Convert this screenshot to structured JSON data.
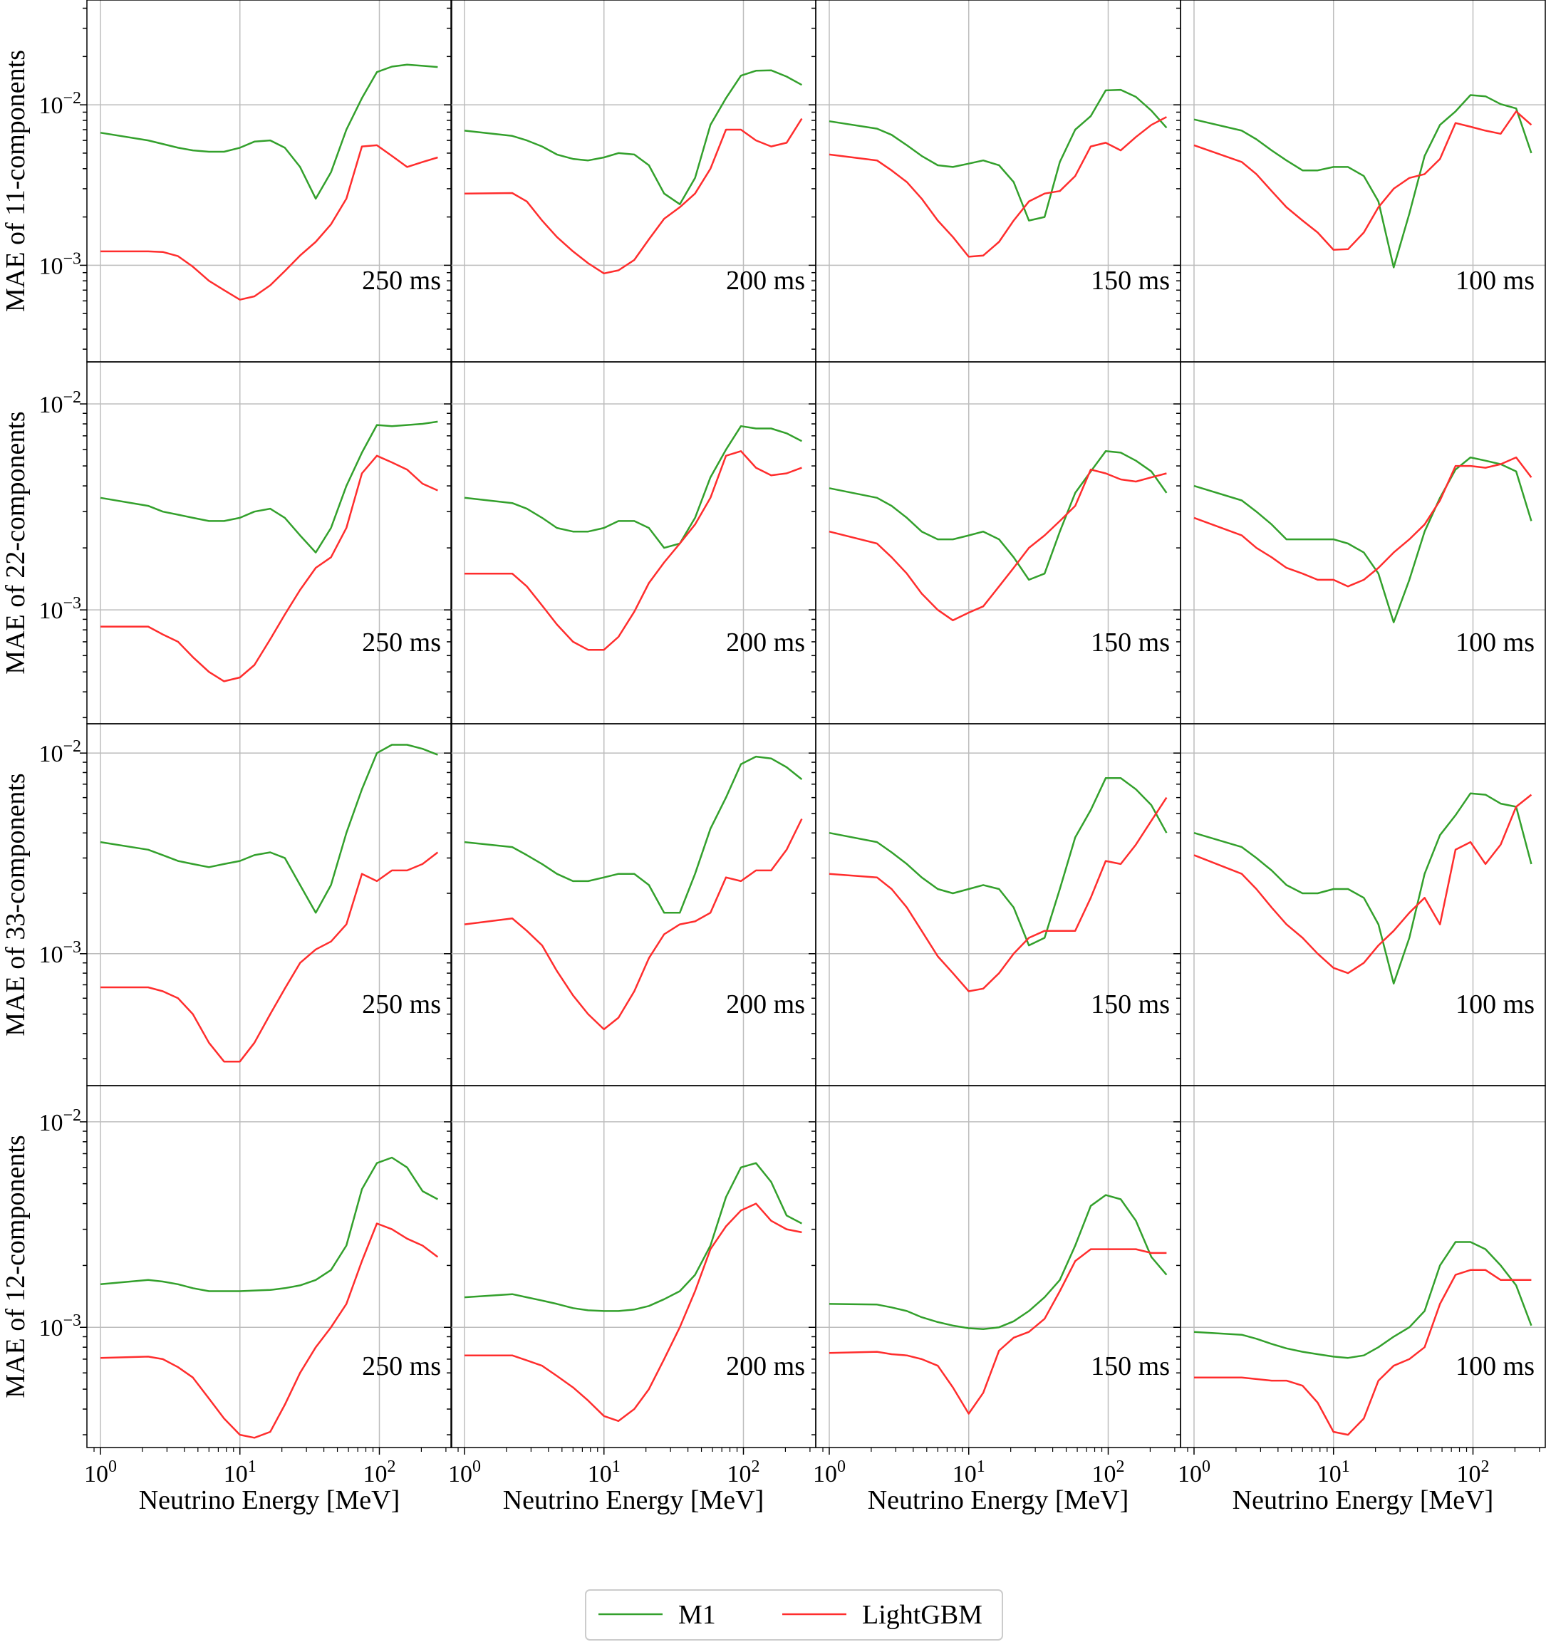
{
  "chart_data": {
    "type": "line",
    "layout": "4x4 grid",
    "x_scale": "log",
    "y_scale": "log",
    "xlim": [
      0.8,
      330
    ],
    "xlabel": "Neutrino Energy [MeV]",
    "x_ticks": [
      {
        "value": 1,
        "base": "10",
        "exp": "0"
      },
      {
        "value": 10,
        "base": "10",
        "exp": "1"
      },
      {
        "value": 100,
        "base": "10",
        "exp": "2"
      }
    ],
    "energies": [
      1,
      2.2,
      2.8,
      3.6,
      4.6,
      6,
      7.7,
      10,
      12.7,
      16.5,
      21,
      27,
      35,
      45,
      58,
      75,
      96,
      123,
      158,
      204,
      262
    ],
    "legend": {
      "position": "bottom-center",
      "entries": [
        {
          "name": "M1",
          "color": "#33a02c"
        },
        {
          "name": "LightGBM",
          "color": "#ff2d2d"
        }
      ]
    },
    "rows": [
      {
        "ylabel": "MAE of 11-components",
        "ylim": [
          0.00025,
          0.045
        ],
        "y_ticks": [
          {
            "value": 0.001,
            "base": "10",
            "exp": "−3"
          },
          {
            "value": 0.01,
            "base": "10",
            "exp": "−2"
          }
        ],
        "panels": [
          {
            "label": "250 ms",
            "M1": [
              0.0067,
              0.006,
              0.0057,
              0.0054,
              0.0052,
              0.0051,
              0.0051,
              0.0054,
              0.0059,
              0.006,
              0.0054,
              0.0041,
              0.0026,
              0.0038,
              0.007,
              0.011,
              0.016,
              0.0173,
              0.0178,
              0.0175,
              0.0172
            ],
            "LightGBM": [
              0.00122,
              0.00122,
              0.00121,
              0.00114,
              0.00098,
              0.0008,
              0.0007,
              0.00061,
              0.00064,
              0.00075,
              0.00092,
              0.00115,
              0.0014,
              0.0018,
              0.0026,
              0.0055,
              0.0056,
              0.0048,
              0.0041,
              0.0044,
              0.0047
            ]
          },
          {
            "label": "200 ms",
            "M1": [
              0.0069,
              0.0064,
              0.006,
              0.0055,
              0.0049,
              0.0046,
              0.0045,
              0.0047,
              0.005,
              0.0049,
              0.0042,
              0.0028,
              0.0024,
              0.0035,
              0.0075,
              0.011,
              0.0152,
              0.0163,
              0.0164,
              0.015,
              0.0133
            ],
            "LightGBM": [
              0.0028,
              0.00282,
              0.0025,
              0.0019,
              0.0015,
              0.00122,
              0.00103,
              0.00089,
              0.00093,
              0.00108,
              0.00145,
              0.00195,
              0.0023,
              0.0028,
              0.004,
              0.007,
              0.007,
              0.006,
              0.0055,
              0.0058,
              0.0082
            ]
          },
          {
            "label": "150 ms",
            "M1": [
              0.0079,
              0.0071,
              0.0065,
              0.0056,
              0.0048,
              0.0042,
              0.0041,
              0.0043,
              0.0045,
              0.0042,
              0.0033,
              0.0019,
              0.002,
              0.0044,
              0.007,
              0.0085,
              0.0123,
              0.0124,
              0.0112,
              0.0092,
              0.0072
            ],
            "LightGBM": [
              0.0049,
              0.0045,
              0.0039,
              0.0033,
              0.0026,
              0.0019,
              0.0015,
              0.00113,
              0.00115,
              0.0014,
              0.0019,
              0.0025,
              0.0028,
              0.0029,
              0.0036,
              0.0055,
              0.0058,
              0.0052,
              0.0063,
              0.0075,
              0.0084
            ]
          },
          {
            "label": "100 ms",
            "M1": [
              0.0081,
              0.0069,
              0.0061,
              0.0052,
              0.0045,
              0.0039,
              0.0039,
              0.0041,
              0.0041,
              0.0036,
              0.0025,
              0.00097,
              0.0021,
              0.0048,
              0.0075,
              0.0091,
              0.0115,
              0.0113,
              0.0101,
              0.0095,
              0.005
            ],
            "LightGBM": [
              0.0056,
              0.0044,
              0.0037,
              0.0029,
              0.0023,
              0.0019,
              0.0016,
              0.00125,
              0.00126,
              0.0016,
              0.0023,
              0.003,
              0.0035,
              0.0037,
              0.0046,
              0.0077,
              0.0073,
              0.0069,
              0.0066,
              0.0091,
              0.0075
            ]
          }
        ]
      },
      {
        "ylabel": "MAE of 22-components",
        "ylim": [
          0.00028,
          0.016
        ],
        "y_ticks": [
          {
            "value": 0.001,
            "base": "10",
            "exp": "−3"
          },
          {
            "value": 0.01,
            "base": "10",
            "exp": "−2"
          }
        ],
        "panels": [
          {
            "label": "250 ms",
            "M1": [
              0.0035,
              0.0032,
              0.003,
              0.0029,
              0.0028,
              0.0027,
              0.0027,
              0.0028,
              0.003,
              0.0031,
              0.0028,
              0.0023,
              0.0019,
              0.0025,
              0.004,
              0.0058,
              0.0079,
              0.0078,
              0.0079,
              0.008,
              0.0082
            ],
            "LightGBM": [
              0.00083,
              0.00083,
              0.00076,
              0.0007,
              0.00059,
              0.0005,
              0.00045,
              0.00047,
              0.00054,
              0.00072,
              0.00095,
              0.00125,
              0.0016,
              0.0018,
              0.0025,
              0.0046,
              0.0056,
              0.0052,
              0.0048,
              0.0041,
              0.0038
            ]
          },
          {
            "label": "200 ms",
            "M1": [
              0.0035,
              0.0033,
              0.0031,
              0.0028,
              0.0025,
              0.0024,
              0.0024,
              0.0025,
              0.0027,
              0.0027,
              0.0025,
              0.002,
              0.0021,
              0.0028,
              0.0044,
              0.006,
              0.0078,
              0.0076,
              0.0076,
              0.0072,
              0.0066
            ],
            "LightGBM": [
              0.0015,
              0.0015,
              0.0013,
              0.00105,
              0.00085,
              0.0007,
              0.00064,
              0.00064,
              0.00074,
              0.00098,
              0.00135,
              0.0017,
              0.0021,
              0.0026,
              0.0035,
              0.0056,
              0.0059,
              0.0049,
              0.0045,
              0.0046,
              0.0049
            ]
          },
          {
            "label": "150 ms",
            "M1": [
              0.0039,
              0.0035,
              0.0032,
              0.0028,
              0.0024,
              0.0022,
              0.0022,
              0.0023,
              0.0024,
              0.0022,
              0.0018,
              0.0014,
              0.0015,
              0.0024,
              0.0037,
              0.0047,
              0.0059,
              0.0058,
              0.0053,
              0.0047,
              0.0037
            ],
            "LightGBM": [
              0.0024,
              0.0021,
              0.0018,
              0.0015,
              0.0012,
              0.001,
              0.00089,
              0.00097,
              0.00104,
              0.0013,
              0.0016,
              0.002,
              0.0023,
              0.0027,
              0.0032,
              0.0048,
              0.0046,
              0.0043,
              0.0042,
              0.0044,
              0.0046
            ]
          },
          {
            "label": "100 ms",
            "M1": [
              0.004,
              0.0034,
              0.003,
              0.0026,
              0.0022,
              0.0022,
              0.0022,
              0.0022,
              0.0021,
              0.0019,
              0.0015,
              0.00087,
              0.0014,
              0.0024,
              0.0035,
              0.0048,
              0.0055,
              0.0053,
              0.0051,
              0.0047,
              0.0027
            ],
            "LightGBM": [
              0.0028,
              0.0023,
              0.002,
              0.0018,
              0.0016,
              0.0015,
              0.0014,
              0.0014,
              0.0013,
              0.0014,
              0.0016,
              0.0019,
              0.0022,
              0.0026,
              0.0034,
              0.005,
              0.005,
              0.0049,
              0.0051,
              0.0055,
              0.0044
            ]
          }
        ]
      },
      {
        "ylabel": "MAE of 33-components",
        "ylim": [
          0.00022,
          0.014
        ],
        "y_ticks": [
          {
            "value": 0.001,
            "base": "10",
            "exp": "−3"
          },
          {
            "value": 0.01,
            "base": "10",
            "exp": "−2"
          }
        ],
        "panels": [
          {
            "label": "250 ms",
            "M1": [
              0.0036,
              0.0033,
              0.0031,
              0.0029,
              0.0028,
              0.0027,
              0.0028,
              0.0029,
              0.0031,
              0.0032,
              0.003,
              0.0022,
              0.0016,
              0.0022,
              0.004,
              0.0066,
              0.01,
              0.011,
              0.011,
              0.0105,
              0.0098
            ],
            "LightGBM": [
              0.00068,
              0.00068,
              0.00065,
              0.0006,
              0.0005,
              0.00036,
              0.00029,
              0.00029,
              0.00036,
              0.0005,
              0.00067,
              0.0009,
              0.00105,
              0.00115,
              0.0014,
              0.0025,
              0.0023,
              0.0026,
              0.0026,
              0.0028,
              0.0032
            ]
          },
          {
            "label": "200 ms",
            "M1": [
              0.0036,
              0.0034,
              0.0031,
              0.0028,
              0.0025,
              0.0023,
              0.0023,
              0.0024,
              0.0025,
              0.0025,
              0.0022,
              0.0016,
              0.0016,
              0.0025,
              0.0042,
              0.006,
              0.0088,
              0.0096,
              0.0094,
              0.0085,
              0.0074
            ],
            "LightGBM": [
              0.0014,
              0.0015,
              0.0013,
              0.0011,
              0.00082,
              0.00062,
              0.0005,
              0.00042,
              0.00048,
              0.00065,
              0.00095,
              0.00125,
              0.0014,
              0.00145,
              0.0016,
              0.0024,
              0.0023,
              0.0026,
              0.0026,
              0.0033,
              0.0047
            ]
          },
          {
            "label": "150 ms",
            "M1": [
              0.004,
              0.0036,
              0.0032,
              0.0028,
              0.0024,
              0.0021,
              0.002,
              0.0021,
              0.0022,
              0.0021,
              0.0017,
              0.0011,
              0.0012,
              0.0021,
              0.0038,
              0.0052,
              0.0075,
              0.0075,
              0.0066,
              0.0055,
              0.004
            ],
            "LightGBM": [
              0.0025,
              0.0024,
              0.0021,
              0.0017,
              0.0013,
              0.00097,
              0.0008,
              0.00065,
              0.00067,
              0.0008,
              0.001,
              0.0012,
              0.0013,
              0.0013,
              0.0013,
              0.0019,
              0.0029,
              0.0028,
              0.0035,
              0.0046,
              0.006
            ]
          },
          {
            "label": "100 ms",
            "M1": [
              0.004,
              0.0034,
              0.003,
              0.0026,
              0.0022,
              0.002,
              0.002,
              0.0021,
              0.0021,
              0.0019,
              0.0014,
              0.00071,
              0.0012,
              0.0025,
              0.0039,
              0.0049,
              0.0063,
              0.0062,
              0.0056,
              0.0054,
              0.0028
            ],
            "LightGBM": [
              0.0031,
              0.0025,
              0.0021,
              0.0017,
              0.0014,
              0.0012,
              0.001,
              0.00085,
              0.0008,
              0.0009,
              0.0011,
              0.0013,
              0.0016,
              0.0019,
              0.0014,
              0.0033,
              0.0036,
              0.0028,
              0.0035,
              0.0054,
              0.0062
            ]
          }
        ]
      },
      {
        "ylabel": "MAE of 12-components",
        "ylim": [
          0.00026,
          0.015
        ],
        "y_ticks": [
          {
            "value": 0.001,
            "base": "10",
            "exp": "−3"
          },
          {
            "value": 0.01,
            "base": "10",
            "exp": "−2"
          }
        ],
        "panels": [
          {
            "label": "250 ms",
            "M1": [
              0.00162,
              0.0017,
              0.00167,
              0.00162,
              0.00155,
              0.0015,
              0.0015,
              0.0015,
              0.00151,
              0.00152,
              0.00155,
              0.0016,
              0.0017,
              0.0019,
              0.0025,
              0.0047,
              0.0063,
              0.0067,
              0.006,
              0.0046,
              0.0042
            ],
            "LightGBM": [
              0.00071,
              0.00072,
              0.0007,
              0.00064,
              0.00057,
              0.00045,
              0.00036,
              0.0003,
              0.00029,
              0.00031,
              0.00042,
              0.0006,
              0.0008,
              0.001,
              0.0013,
              0.0021,
              0.0032,
              0.003,
              0.0027,
              0.0025,
              0.0022
            ]
          },
          {
            "label": "200 ms",
            "M1": [
              0.0014,
              0.00145,
              0.0014,
              0.00135,
              0.0013,
              0.00124,
              0.00121,
              0.0012,
              0.0012,
              0.00122,
              0.00127,
              0.00137,
              0.0015,
              0.0018,
              0.0025,
              0.0043,
              0.006,
              0.0063,
              0.0051,
              0.0035,
              0.0032
            ],
            "LightGBM": [
              0.00073,
              0.00073,
              0.00069,
              0.00065,
              0.00058,
              0.00051,
              0.00044,
              0.00037,
              0.00035,
              0.0004,
              0.0005,
              0.0007,
              0.001,
              0.0015,
              0.0024,
              0.0031,
              0.0037,
              0.004,
              0.0033,
              0.003,
              0.0029
            ]
          },
          {
            "label": "150 ms",
            "M1": [
              0.0013,
              0.00129,
              0.00125,
              0.0012,
              0.00112,
              0.00106,
              0.00102,
              0.00099,
              0.00098,
              0.001,
              0.00107,
              0.0012,
              0.0014,
              0.0017,
              0.0025,
              0.0039,
              0.0044,
              0.0042,
              0.0033,
              0.0022,
              0.0018
            ],
            "LightGBM": [
              0.00075,
              0.00076,
              0.00074,
              0.00073,
              0.0007,
              0.00065,
              0.00051,
              0.00038,
              0.00048,
              0.00077,
              0.00089,
              0.00095,
              0.0011,
              0.0015,
              0.0021,
              0.0024,
              0.0024,
              0.0024,
              0.0024,
              0.0023,
              0.0023
            ]
          },
          {
            "label": "100 ms",
            "M1": [
              0.00095,
              0.00092,
              0.00088,
              0.00083,
              0.00079,
              0.00076,
              0.00074,
              0.00072,
              0.00071,
              0.00073,
              0.0008,
              0.0009,
              0.001,
              0.0012,
              0.002,
              0.0026,
              0.0026,
              0.0024,
              0.002,
              0.0016,
              0.00102
            ],
            "LightGBM": [
              0.00057,
              0.00057,
              0.00056,
              0.00055,
              0.00055,
              0.00052,
              0.00043,
              0.00031,
              0.0003,
              0.00036,
              0.00055,
              0.00065,
              0.0007,
              0.0008,
              0.0013,
              0.0018,
              0.0019,
              0.0019,
              0.0017,
              0.0017,
              0.0017
            ]
          }
        ]
      }
    ]
  }
}
